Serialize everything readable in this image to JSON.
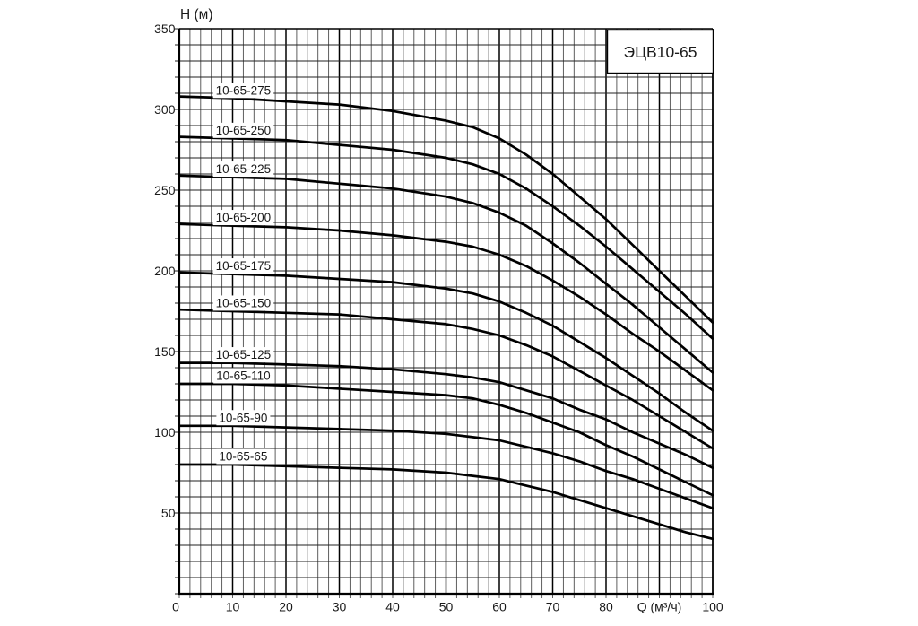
{
  "page": {
    "background": "#ffffff"
  },
  "badge": {
    "text": "ЭЦВ10-65"
  },
  "y_axis": {
    "title": "H (м)",
    "ticks": [
      350,
      300,
      250,
      200,
      150,
      100,
      50
    ]
  },
  "x_axis": {
    "ticks": [
      0,
      10,
      20,
      30,
      40,
      50,
      60,
      70,
      80,
      100
    ],
    "unit_label": "Q (м³/ч)",
    "unit_label_at": 90
  },
  "colors": {
    "background": "#ffffff",
    "curve": "#000000",
    "grid_minor": "#4d4d4d",
    "grid_horizontal": "#222222",
    "grid_major": "#000000",
    "border": "#000000",
    "text": "#1a1a1a",
    "label_bg": "#ffffff"
  },
  "chart_data": {
    "type": "line",
    "title": "ЭЦВ10-65",
    "xlabel": "Q (м³/ч)",
    "ylabel": "H (м)",
    "xlim": [
      0,
      100
    ],
    "ylim": [
      0,
      350
    ],
    "grid": "on",
    "x_grid_step": 2,
    "x_major_step": 10,
    "y_grid_step": 10,
    "legend_position": "labels-on-curves",
    "x": [
      0,
      10,
      20,
      30,
      40,
      50,
      55,
      60,
      65,
      70,
      75,
      80,
      85,
      90,
      95,
      100
    ],
    "series": [
      {
        "name": "10-65-275",
        "values": [
          308,
          307,
          305,
          303,
          299,
          293,
          289,
          282,
          272,
          260,
          246,
          232,
          216,
          200,
          184,
          168
        ]
      },
      {
        "name": "10-65-250",
        "values": [
          283,
          282,
          281,
          278,
          275,
          270,
          266,
          260,
          251,
          240,
          228,
          215,
          201,
          187,
          173,
          158
        ]
      },
      {
        "name": "10-65-225",
        "values": [
          259,
          258,
          257,
          254,
          251,
          246,
          242,
          236,
          228,
          217,
          205,
          192,
          179,
          165,
          151,
          137
        ]
      },
      {
        "name": "10-65-200",
        "values": [
          229,
          228,
          227,
          225,
          222,
          218,
          215,
          210,
          203,
          194,
          184,
          173,
          161,
          150,
          138,
          126
        ]
      },
      {
        "name": "10-65-175",
        "values": [
          199,
          198,
          197,
          195,
          193,
          189,
          186,
          181,
          174,
          166,
          156,
          146,
          135,
          124,
          112,
          101
        ]
      },
      {
        "name": "10-65-150",
        "values": [
          176,
          175,
          174,
          173,
          170,
          167,
          164,
          160,
          154,
          147,
          138,
          129,
          120,
          110,
          100,
          90
        ]
      },
      {
        "name": "10-65-125",
        "values": [
          143,
          143,
          142,
          141,
          139,
          136,
          134,
          131,
          126,
          121,
          114,
          108,
          100,
          93,
          86,
          78
        ]
      },
      {
        "name": "10-65-110",
        "values": [
          130,
          130,
          129,
          127,
          125,
          123,
          121,
          117,
          112,
          106,
          100,
          92,
          85,
          77,
          69,
          61
        ]
      },
      {
        "name": "10-65-90",
        "values": [
          104,
          104,
          103,
          102,
          101,
          99,
          97,
          95,
          91,
          87,
          82,
          76,
          71,
          65,
          59,
          53
        ]
      },
      {
        "name": "10-65-65",
        "values": [
          80,
          80,
          79,
          78,
          77,
          75,
          73,
          71,
          67,
          63,
          58,
          53,
          48,
          43,
          38,
          34
        ]
      }
    ]
  }
}
